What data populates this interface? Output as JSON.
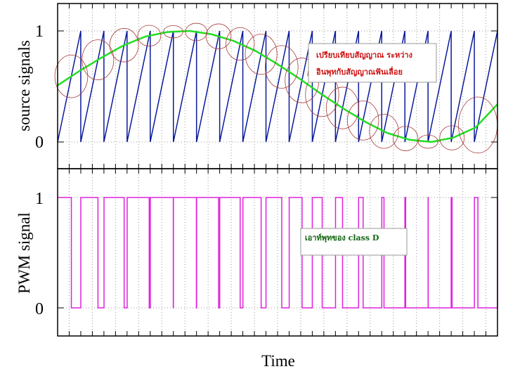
{
  "chart_data": [
    {
      "type": "line",
      "ylabel": "source signals",
      "xlabel": "",
      "ylim": [
        -0.25,
        1.25
      ],
      "yticks": [
        "0",
        "1"
      ],
      "grid": true,
      "series": [
        {
          "kind": "sawtooth",
          "color": "#0a1a9a",
          "periods": 19,
          "min": 0,
          "max": 1
        },
        {
          "kind": "sine",
          "color": "#22dd22",
          "samples_x": [
            0.0,
            0.05,
            0.1,
            0.15,
            0.2,
            0.25,
            0.3,
            0.35,
            0.4,
            0.45,
            0.5,
            0.55,
            0.6,
            0.65,
            0.7,
            0.75,
            0.8,
            0.85,
            0.9,
            0.95,
            1.0
          ],
          "samples_y": [
            0.51,
            0.64,
            0.76,
            0.87,
            0.95,
            0.99,
            1.0,
            0.97,
            0.91,
            0.82,
            0.7,
            0.57,
            0.43,
            0.3,
            0.18,
            0.08,
            0.02,
            0.0,
            0.04,
            0.13,
            0.34
          ]
        }
      ],
      "annotation": {
        "lines": [
          "เปรียบเทียบสัญญาณ ระหว่าง",
          "อินพุทกับสัญญาณฟันเลื่อย"
        ],
        "color": "#cc1111"
      }
    },
    {
      "type": "line",
      "ylabel": "PWM signal",
      "xlabel": "Time",
      "ylim": [
        -0.25,
        1.25
      ],
      "yticks": [
        "0",
        "1"
      ],
      "grid": true,
      "series": [
        {
          "kind": "pwm",
          "color": "#dd22dd",
          "from_comparison": "sine > sawtooth"
        }
      ],
      "annotation": {
        "lines": [
          "เอาท์พุทของ class D"
        ],
        "color": "#116611"
      }
    }
  ]
}
